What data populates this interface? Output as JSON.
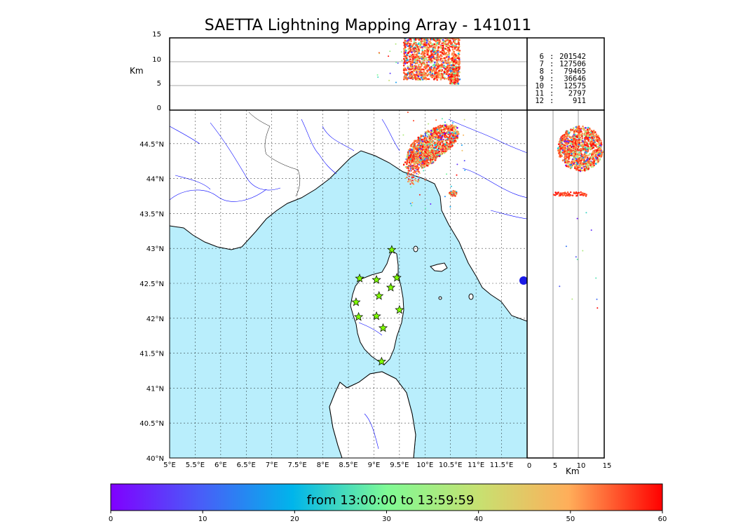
{
  "title": "SAETTA Lightning Mapping Array - 141011",
  "colorbar": {
    "text": "from 13:00:00 to 13:59:59",
    "ticks": [
      "0",
      "10",
      "20",
      "30",
      "40",
      "50",
      "60"
    ]
  },
  "top_panel": {
    "ylabel": "Km",
    "yticks": [
      "0",
      "5",
      "10",
      "15"
    ]
  },
  "right_panel": {
    "xlabel": "Km",
    "xticks": [
      "0",
      "5",
      "10",
      "15"
    ]
  },
  "map": {
    "lon_ticks": [
      "5°E",
      "5.5°E",
      "6°E",
      "6.5°E",
      "7°E",
      "7.5°E",
      "8°E",
      "8.5°E",
      "9°E",
      "9.5°E",
      "10°E",
      "10.5°E",
      "11°E",
      "11.5°E"
    ],
    "lat_ticks": [
      "40°N",
      "40.5°N",
      "41°N",
      "41.5°N",
      "42°N",
      "42.5°N",
      "43°N",
      "43.5°N",
      "44°N",
      "44.5°N"
    ],
    "sea_color": "#b9eefc",
    "land_color": "#ffffff",
    "river_color": "#0000ff",
    "station_color": "#7fff00"
  },
  "station_counts": [
    {
      "n": "6",
      "count": "201542",
      "color": "#000000"
    },
    {
      "n": "7",
      "count": "127506",
      "color": "#ff0000"
    },
    {
      "n": "8",
      "count": "79465",
      "color": "#000000"
    },
    {
      "n": "9",
      "count": "36646",
      "color": "#000000"
    },
    {
      "n": "10",
      "count": "12575",
      "color": "#000000"
    },
    {
      "n": "11",
      "count": "2797",
      "color": "#000000"
    },
    {
      "n": "12",
      "count": "911",
      "color": "#000000"
    }
  ]
}
